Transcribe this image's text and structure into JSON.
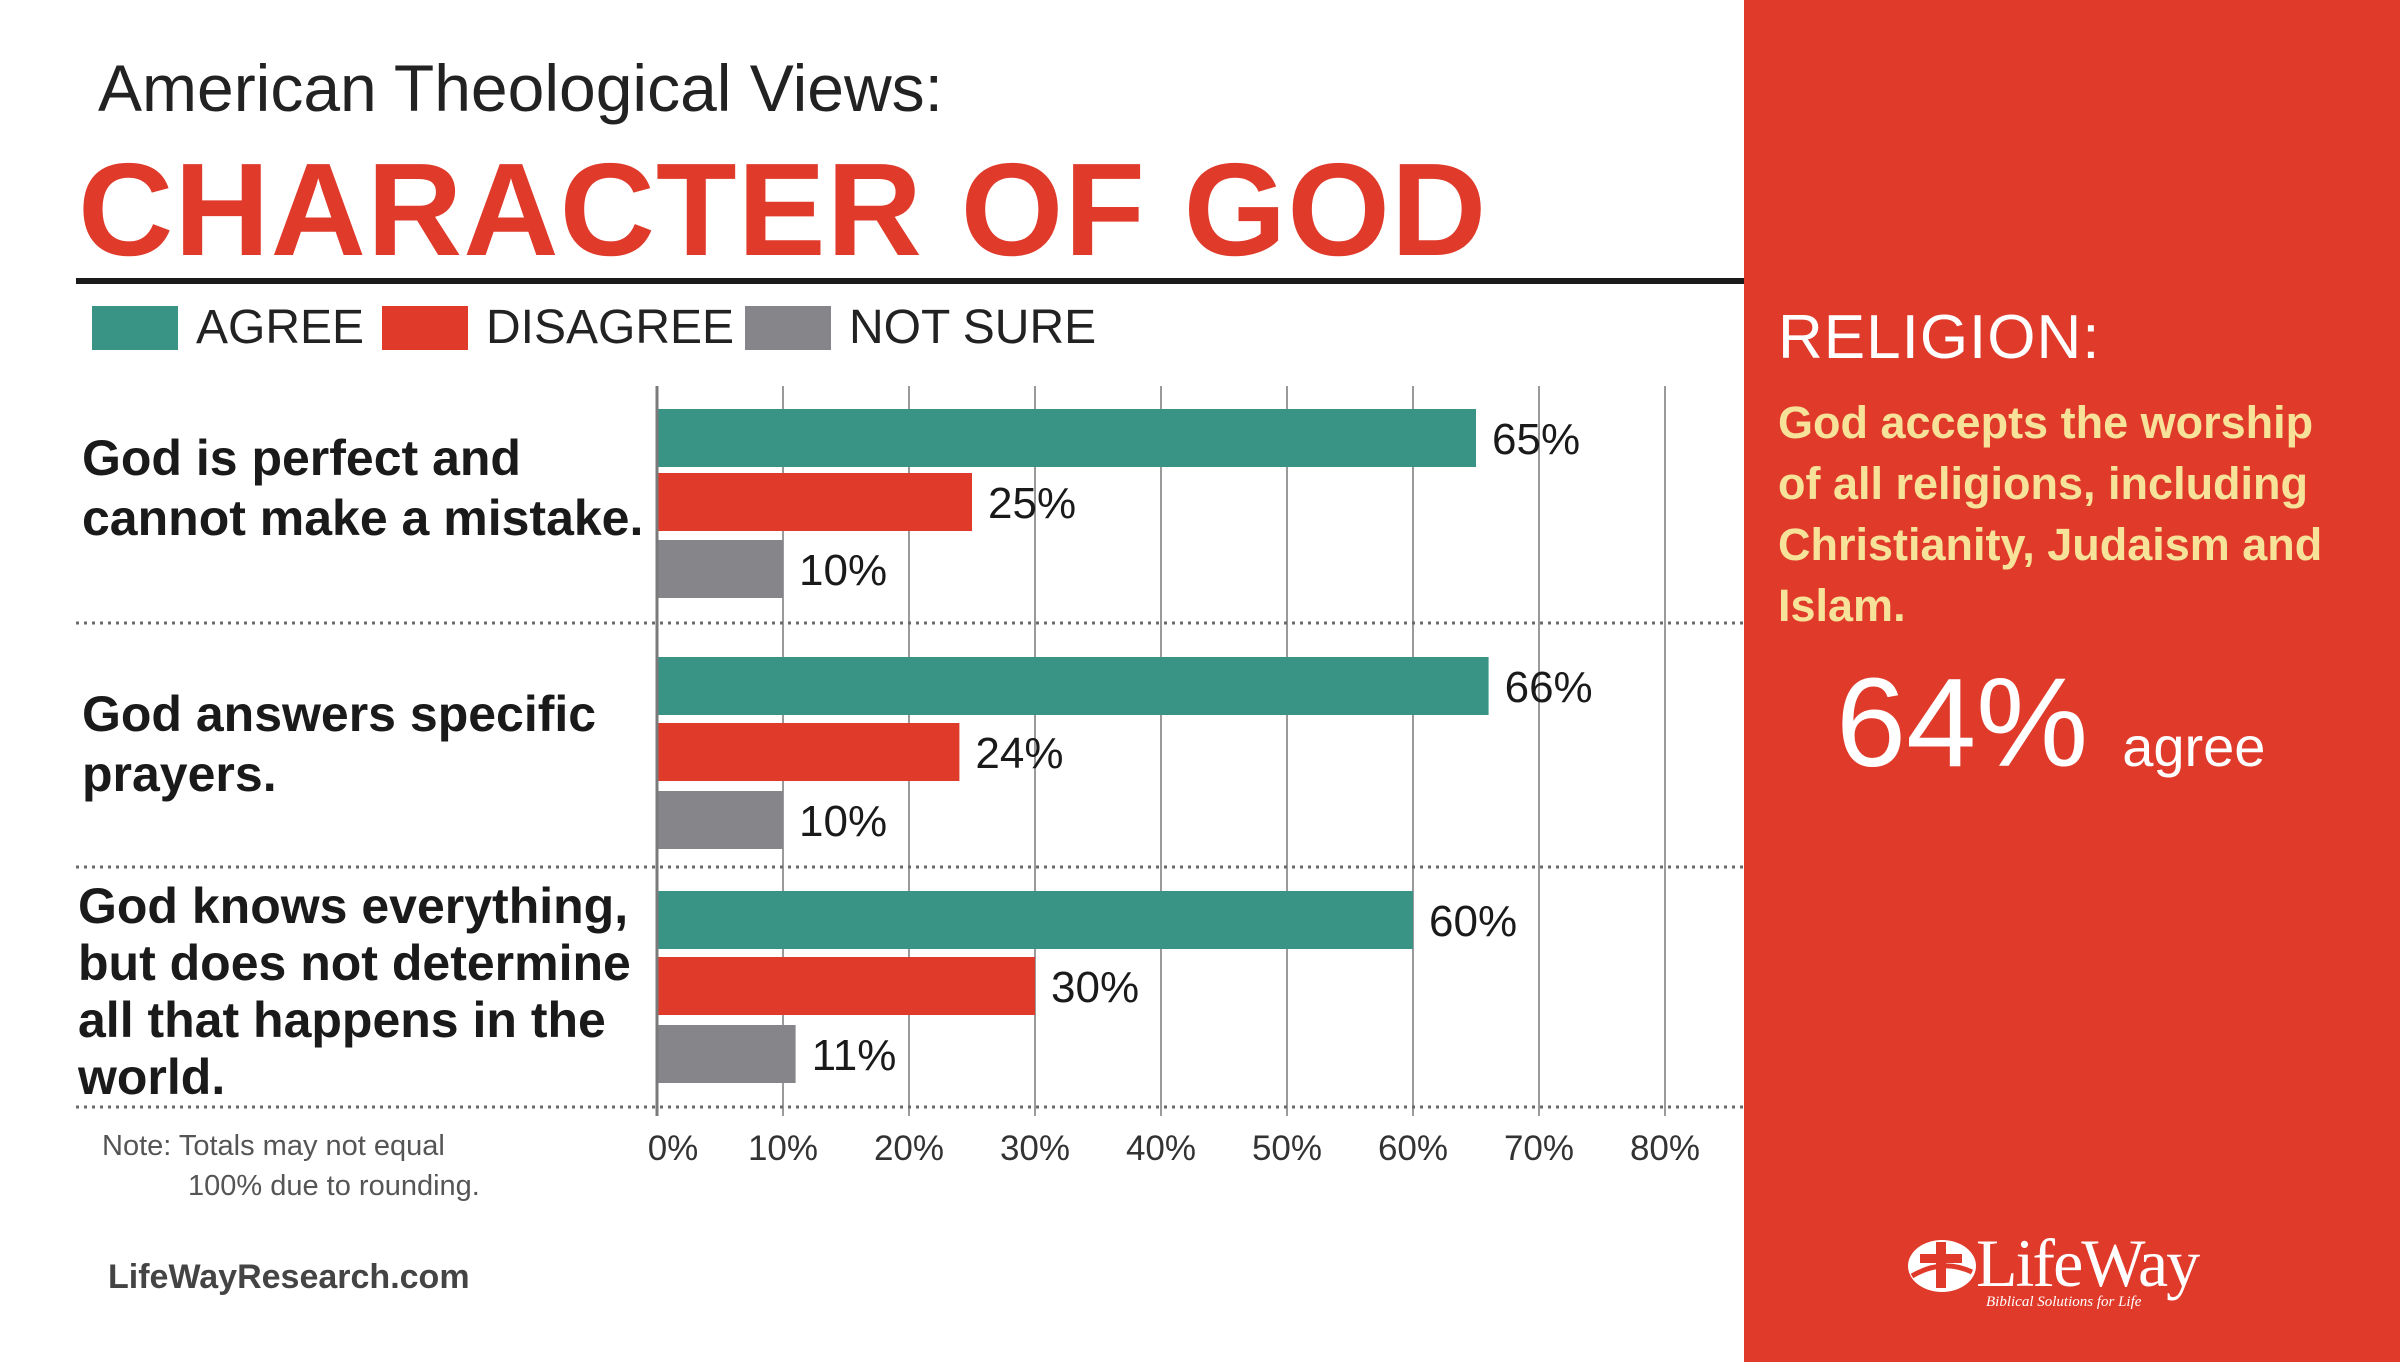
{
  "kicker": "American Theological Views:",
  "headline": "CHARACTER OF GOD",
  "legend": {
    "agree": "AGREE",
    "disagree": "DISAGREE",
    "not_sure": "NOT SURE"
  },
  "colors": {
    "agree": "#3a9485",
    "disagree": "#e03a2b",
    "not_sure": "#85858a",
    "panel": "#e03a2b",
    "highlight": "#f7e29a"
  },
  "note_line1": "Note: Totals may not equal",
  "note_line2": "100% due to rounding.",
  "footer_url": "LifeWayResearch.com",
  "right_panel": {
    "title": "RELIGION:",
    "statement": "God accepts the worship of all religions, including Christianity, Judaism and Islam.",
    "figure": "64%",
    "figure_label": "agree"
  },
  "logo": {
    "name": "LifeWay",
    "tagline": "Biblical Solutions for Life",
    "icon": "lifeway-cross-icon"
  },
  "chart_data": {
    "type": "bar",
    "orientation": "horizontal",
    "categories": [
      "God is perfect and cannot make a mistake.",
      "God answers specific prayers.",
      "God knows everything, but does not determine all that happens in the world."
    ],
    "series": [
      {
        "name": "AGREE",
        "values": [
          65,
          66,
          60
        ]
      },
      {
        "name": "DISAGREE",
        "values": [
          25,
          24,
          30
        ]
      },
      {
        "name": "NOT SURE",
        "values": [
          10,
          10,
          11
        ]
      }
    ],
    "value_labels": [
      [
        "65%",
        "25%",
        "10%"
      ],
      [
        "66%",
        "24%",
        "10%"
      ],
      [
        "60%",
        "30%",
        "11%"
      ]
    ],
    "xlim": [
      0,
      80
    ],
    "xticks": [
      "0%",
      "10%",
      "20%",
      "30%",
      "40%",
      "50%",
      "60%",
      "70%",
      "80%"
    ],
    "grid": true,
    "legend_position": "top"
  }
}
